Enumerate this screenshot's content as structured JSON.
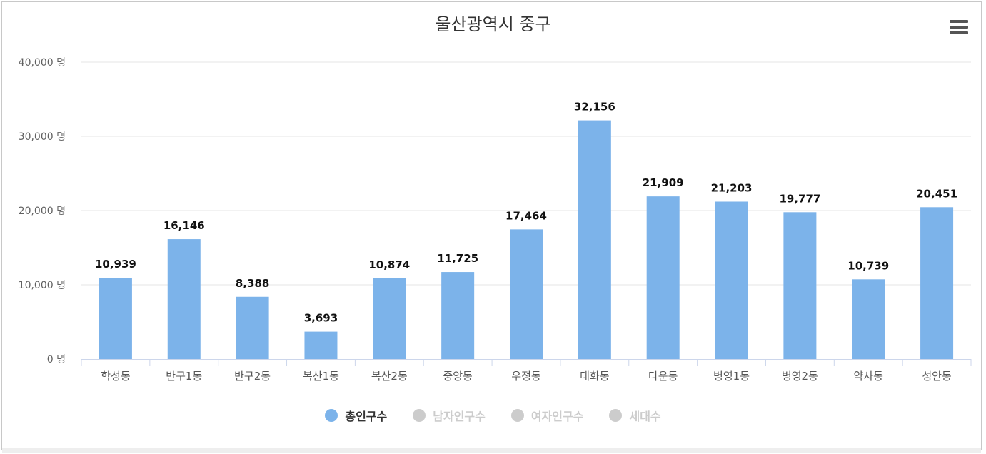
{
  "chart_data": {
    "type": "bar",
    "title": "울산광역시 중구",
    "categories": [
      "학성동",
      "반구1동",
      "반구2동",
      "복산1동",
      "복산2동",
      "중앙동",
      "우정동",
      "태화동",
      "다운동",
      "병영1동",
      "병영2동",
      "약사동",
      "성안동"
    ],
    "series": [
      {
        "name": "총인구수",
        "values": [
          10939,
          16146,
          8388,
          3693,
          10874,
          11725,
          17464,
          32156,
          21909,
          21203,
          19777,
          10739,
          20451
        ],
        "labels": [
          "10,939",
          "16,146",
          "8,388",
          "3,693",
          "10,874",
          "11,725",
          "17,464",
          "32,156",
          "21,909",
          "21,203",
          "19,777",
          "10,739",
          "20,451"
        ],
        "color": "#7cb3ea"
      }
    ],
    "yticks": [
      "0 명",
      "10,000 명",
      "20,000 명",
      "30,000 명",
      "40,000 명"
    ],
    "ytick_values": [
      0,
      10000,
      20000,
      30000,
      40000
    ],
    "ylim": [
      0,
      40000
    ],
    "grid": true,
    "legend_position": "bottom"
  },
  "legend": [
    {
      "label": "총인구수",
      "color": "#7cb3ea",
      "active": true
    },
    {
      "label": "남자인구수",
      "color": "#cccccc",
      "active": false
    },
    {
      "label": "여자인구수",
      "color": "#cccccc",
      "active": false
    },
    {
      "label": "세대수",
      "color": "#cccccc",
      "active": false
    }
  ],
  "menu_icon": "hamburger-menu-icon",
  "colors": {
    "bar": "#7cb3ea",
    "grid": "#e6e6e6",
    "axis": "#ccd6eb",
    "inactive": "#cccccc"
  }
}
